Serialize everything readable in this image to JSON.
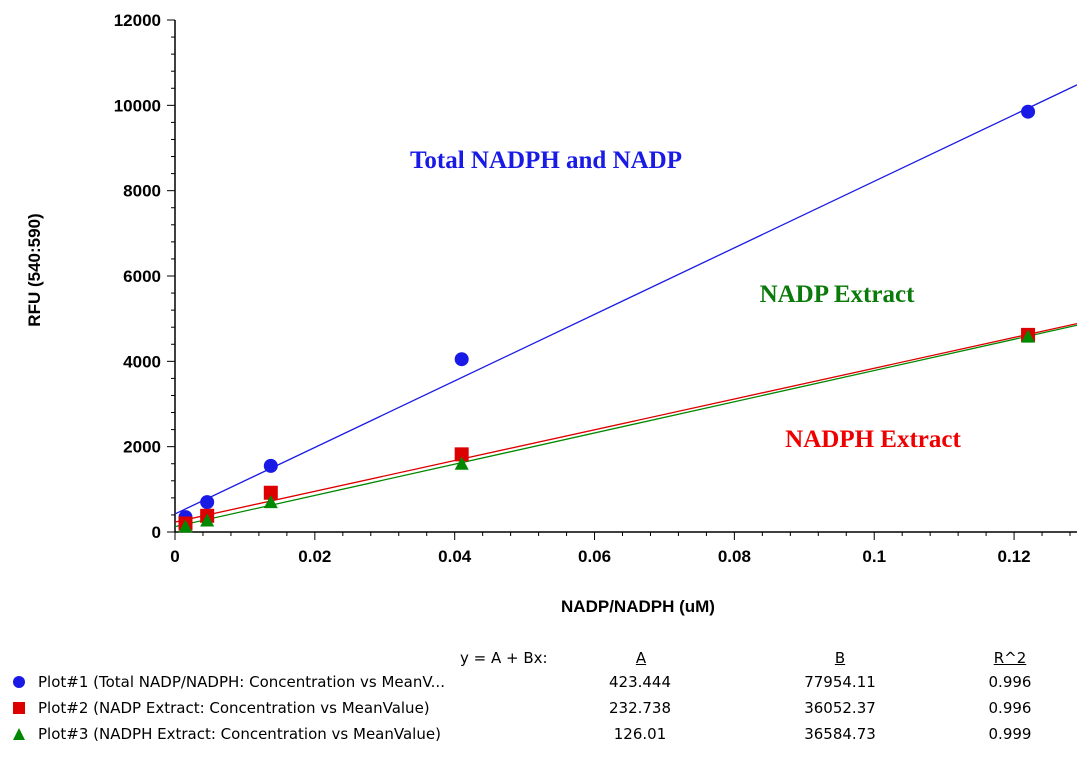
{
  "chart_data": {
    "type": "scatter",
    "xlabel": "NADP/NADPH (uM)",
    "ylabel": "RFU (540:590)",
    "xlim": [
      0,
      0.129
    ],
    "ylim": [
      0,
      12000
    ],
    "x_ticks": [
      "0",
      "0.02",
      "0.04",
      "0.06",
      "0.08",
      "0.1",
      "0.12"
    ],
    "x_tick_values": [
      0,
      0.02,
      0.04,
      0.06,
      0.08,
      0.1,
      0.12
    ],
    "y_ticks": [
      "0",
      "2000",
      "4000",
      "6000",
      "8000",
      "10000",
      "12000"
    ],
    "y_tick_values": [
      0,
      2000,
      4000,
      6000,
      8000,
      10000,
      12000
    ],
    "grid": false,
    "series": [
      {
        "color": "#1a1ae6",
        "marker": "circle",
        "points": [
          [
            0.0015,
            350
          ],
          [
            0.0046,
            700
          ],
          [
            0.0137,
            1550
          ],
          [
            0.041,
            4050
          ],
          [
            0.122,
            9850
          ]
        ],
        "fit": {
          "A": 423.444,
          "B": 77954.11
        }
      },
      {
        "color": "#dd0000",
        "marker": "square",
        "points": [
          [
            0.0015,
            200
          ],
          [
            0.0046,
            380
          ],
          [
            0.0137,
            920
          ],
          [
            0.041,
            1820
          ],
          [
            0.122,
            4620
          ]
        ],
        "fit": {
          "A": 232.738,
          "B": 36052.37
        }
      },
      {
        "color": "#008800",
        "marker": "triangle",
        "points": [
          [
            0.0015,
            130
          ],
          [
            0.0046,
            270
          ],
          [
            0.0137,
            700
          ],
          [
            0.041,
            1600
          ],
          [
            0.122,
            4580
          ]
        ],
        "fit": {
          "A": 126.01,
          "B": 36584.73
        }
      }
    ],
    "annotations": [
      {
        "text": "Total NADPH and NADP",
        "color": "#1a1ae6"
      },
      {
        "text": "NADP Extract",
        "color": "#0a7a0a"
      },
      {
        "text": "NADPH Extract",
        "color": "#ee0000"
      }
    ]
  },
  "legend": {
    "equation_label": "y = A + Bx:",
    "headers": [
      "A",
      "B",
      "R^2"
    ],
    "rows": [
      {
        "label": "Plot#1 (Total NADP/NADPH: Concentration vs MeanV...",
        "A": "423.444",
        "B": "77954.11",
        "R2": "0.996",
        "color": "#1a1ae6",
        "marker": "circle"
      },
      {
        "label": "Plot#2 (NADP Extract: Concentration vs MeanValue)",
        "A": "232.738",
        "B": "36052.37",
        "R2": "0.996",
        "color": "#dd0000",
        "marker": "square"
      },
      {
        "label": "Plot#3 (NADPH Extract: Concentration vs MeanValue)",
        "A": "126.01",
        "B": "36584.73",
        "R2": "0.999",
        "color": "#008800",
        "marker": "triangle"
      }
    ]
  }
}
